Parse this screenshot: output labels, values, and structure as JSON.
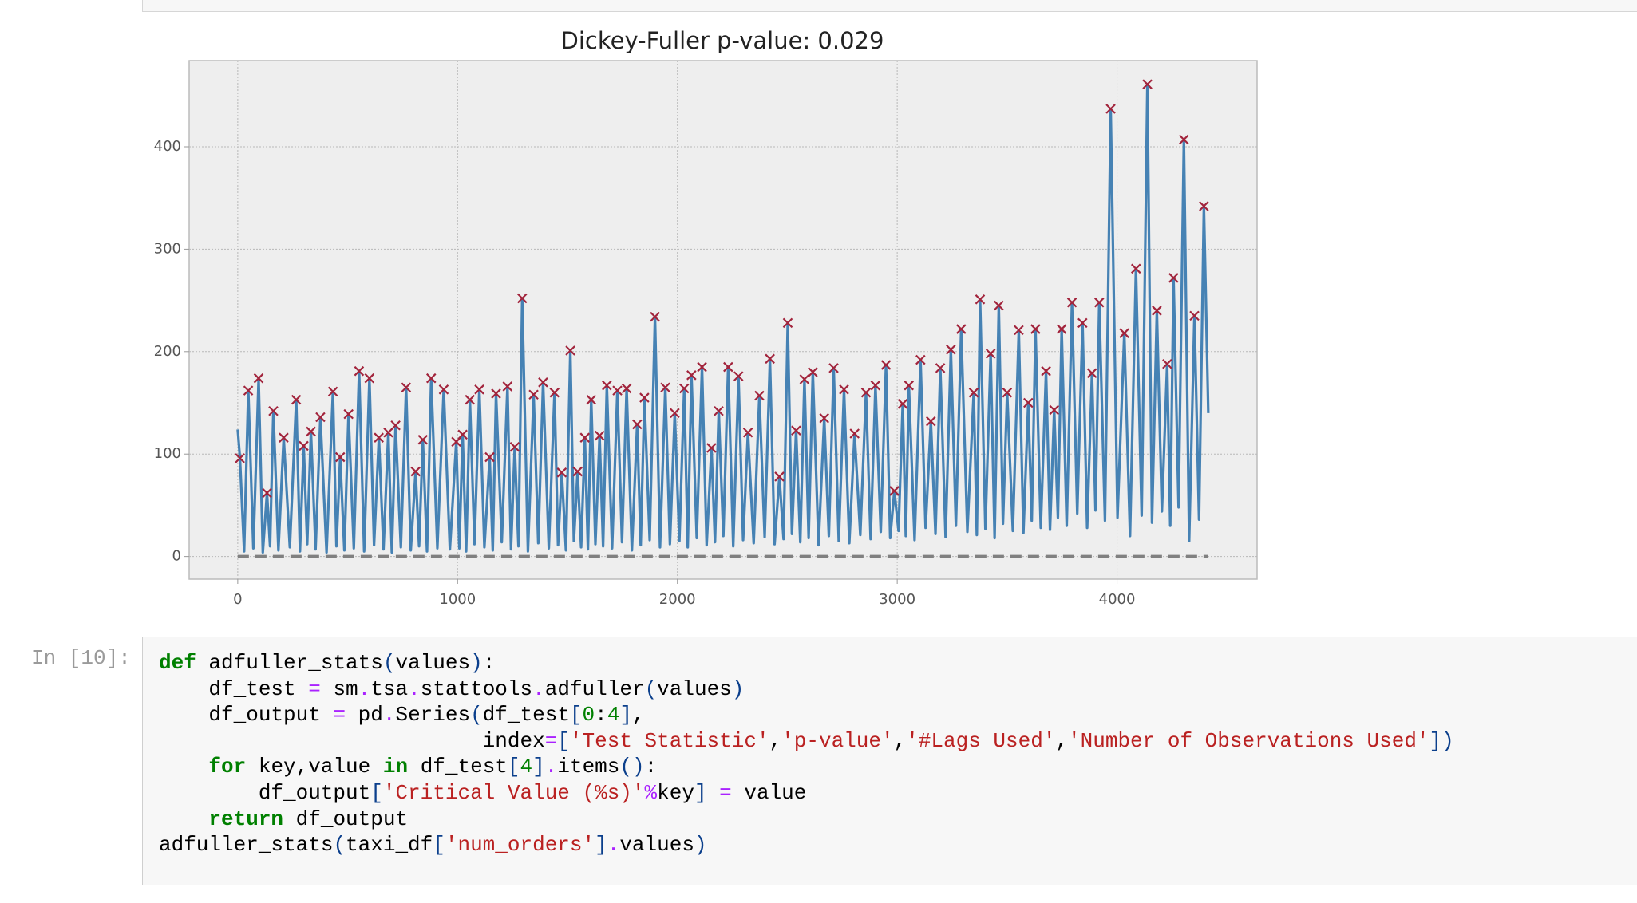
{
  "chart_data": {
    "type": "line",
    "title": "Dickey-Fuller p-value: 0.029",
    "xlim": [
      -221,
      4637
    ],
    "ylim": [
      -22.1,
      484.1
    ],
    "xticks": [
      0,
      1000,
      2000,
      3000,
      4000
    ],
    "yticks": [
      0,
      100,
      200,
      300,
      400
    ],
    "grid": true,
    "series": [
      {
        "color": "#4682b4",
        "x": [
          0,
          10,
          29,
          48,
          71,
          95,
          114,
          133,
          147,
          162,
          185,
          209,
          237,
          266,
          283,
          300,
          316,
          333,
          354,
          376,
          404,
          433,
          449,
          466,
          485,
          504,
          528,
          552,
          575,
          599,
          620,
          642,
          663,
          685,
          701,
          718,
          742,
          766,
          787,
          809,
          825,
          842,
          861,
          880,
          908,
          937,
          965,
          994,
          1008,
          1023,
          1039,
          1056,
          1077,
          1099,
          1122,
          1146,
          1160,
          1175,
          1201,
          1227,
          1243,
          1260,
          1277,
          1294,
          1320,
          1346,
          1367,
          1389,
          1415,
          1441,
          1457,
          1474,
          1493,
          1513,
          1529,
          1546,
          1562,
          1579,
          1593,
          1608,
          1627,
          1646,
          1662,
          1679,
          1703,
          1727,
          1748,
          1769,
          1793,
          1817,
          1833,
          1850,
          1874,
          1898,
          1921,
          1945,
          1966,
          1988,
          2009,
          2031,
          2047,
          2064,
          2088,
          2112,
          2133,
          2155,
          2171,
          2188,
          2209,
          2231,
          2254,
          2278,
          2299,
          2321,
          2347,
          2373,
          2397,
          2421,
          2442,
          2464,
          2483,
          2502,
          2521,
          2540,
          2559,
          2578,
          2597,
          2616,
          2642,
          2668,
          2689,
          2711,
          2734,
          2758,
          2782,
          2806,
          2832,
          2858,
          2879,
          2901,
          2925,
          2949,
          2968,
          2987,
          3006,
          3025,
          3039,
          3053,
          3079,
          3106,
          3129,
          3153,
          3174,
          3196,
          3220,
          3244,
          3267,
          3291,
          3319,
          3348,
          3362,
          3377,
          3401,
          3425,
          3443,
          3462,
          3481,
          3500,
          3526,
          3553,
          3574,
          3596,
          3612,
          3629,
          3653,
          3677,
          3695,
          3714,
          3731,
          3748,
          3771,
          3795,
          3819,
          3843,
          3864,
          3886,
          3902,
          3919,
          3945,
          3971,
          4002,
          4033,
          4059,
          4086,
          4112,
          4138,
          4159,
          4181,
          4204,
          4228,
          4242,
          4257,
          4280,
          4304,
          4328,
          4352,
          4373,
          4395,
          4415
        ],
        "values": [
          124,
          96,
          5,
          162,
          8,
          174,
          4,
          62,
          10,
          142,
          6,
          116,
          9,
          153,
          5,
          108,
          12,
          122,
          7,
          136,
          4,
          161,
          10,
          97,
          6,
          139,
          8,
          181,
          5,
          174,
          11,
          116,
          7,
          121,
          4,
          128,
          9,
          165,
          6,
          83,
          10,
          114,
          5,
          174,
          8,
          163,
          7,
          112,
          8,
          119,
          5,
          153,
          12,
          163,
          9,
          97,
          6,
          159,
          14,
          166,
          7,
          107,
          10,
          252,
          5,
          158,
          13,
          170,
          8,
          160,
          11,
          82,
          6,
          201,
          15,
          83,
          9,
          116,
          7,
          153,
          12,
          118,
          10,
          167,
          8,
          162,
          14,
          164,
          6,
          129,
          11,
          155,
          16,
          234,
          9,
          165,
          12,
          140,
          15,
          164,
          9,
          177,
          18,
          185,
          11,
          106,
          14,
          142,
          20,
          185,
          10,
          176,
          16,
          121,
          13,
          157,
          19,
          193,
          12,
          78,
          17,
          228,
          22,
          123,
          14,
          173,
          18,
          180,
          11,
          135,
          20,
          184,
          15,
          163,
          13,
          120,
          21,
          160,
          17,
          167,
          24,
          187,
          18,
          64,
          25,
          149,
          20,
          167,
          16,
          192,
          28,
          132,
          22,
          184,
          19,
          202,
          30,
          222,
          24,
          160,
          21,
          251,
          27,
          198,
          18,
          245,
          32,
          160,
          25,
          221,
          23,
          150,
          35,
          222,
          28,
          181,
          26,
          143,
          38,
          222,
          30,
          248,
          42,
          228,
          28,
          179,
          45,
          248,
          35,
          437,
          38,
          218,
          20,
          281,
          40,
          461,
          33,
          240,
          44,
          188,
          30,
          272,
          48,
          407,
          15,
          235,
          36,
          342,
          140
        ]
      },
      {
        "color": "#a2243c",
        "marker": "x",
        "x": [
          10,
          48,
          95,
          133,
          162,
          209,
          266,
          300,
          333,
          376,
          433,
          466,
          504,
          552,
          599,
          642,
          685,
          718,
          766,
          809,
          842,
          880,
          937,
          994,
          1023,
          1056,
          1099,
          1146,
          1175,
          1227,
          1260,
          1294,
          1346,
          1389,
          1441,
          1474,
          1513,
          1546,
          1579,
          1608,
          1646,
          1679,
          1727,
          1769,
          1817,
          1850,
          1898,
          1945,
          1988,
          2031,
          2064,
          2112,
          2155,
          2188,
          2231,
          2278,
          2321,
          2373,
          2421,
          2464,
          2502,
          2540,
          2578,
          2616,
          2668,
          2711,
          2758,
          2806,
          2858,
          2901,
          2949,
          2987,
          3025,
          3053,
          3106,
          3153,
          3196,
          3244,
          3291,
          3348,
          3377,
          3425,
          3462,
          3500,
          3553,
          3596,
          3629,
          3677,
          3714,
          3748,
          3795,
          3843,
          3886,
          3919,
          3971,
          4033,
          4086,
          4138,
          4181,
          4228,
          4257,
          4304,
          4352,
          4395
        ],
        "values": [
          96,
          162,
          174,
          62,
          142,
          116,
          153,
          108,
          122,
          136,
          161,
          97,
          139,
          181,
          174,
          116,
          121,
          128,
          165,
          83,
          114,
          174,
          163,
          112,
          119,
          153,
          163,
          97,
          159,
          166,
          107,
          252,
          158,
          170,
          160,
          82,
          201,
          83,
          116,
          153,
          118,
          167,
          162,
          164,
          129,
          155,
          234,
          165,
          140,
          164,
          177,
          185,
          106,
          142,
          185,
          176,
          121,
          157,
          193,
          78,
          228,
          123,
          173,
          180,
          135,
          184,
          163,
          120,
          160,
          167,
          187,
          64,
          149,
          167,
          192,
          132,
          184,
          202,
          222,
          160,
          251,
          198,
          245,
          160,
          221,
          150,
          222,
          181,
          143,
          222,
          248,
          228,
          179,
          248,
          437,
          218,
          281,
          461,
          240,
          188,
          272,
          407,
          235,
          342
        ]
      },
      {
        "color": "#808080",
        "dash": true,
        "x": [
          0,
          4415
        ],
        "values": [
          0,
          0
        ]
      }
    ]
  },
  "code_cell": {
    "prompt": "In [10]:",
    "lines": [
      "def adfuller_stats(values):",
      "    df_test = sm.tsa.stattools.adfuller(values)",
      "    df_output = pd.Series(df_test[0:4],",
      "                          index=['Test Statistic','p-value','#Lags Used','Number of Observations Used'])",
      "    for key,value in df_test[4].items():",
      "        df_output['Critical Value (%s)'%key] = value",
      "    return df_output",
      "adfuller_stats(taxi_df['num_orders'].values)"
    ]
  }
}
